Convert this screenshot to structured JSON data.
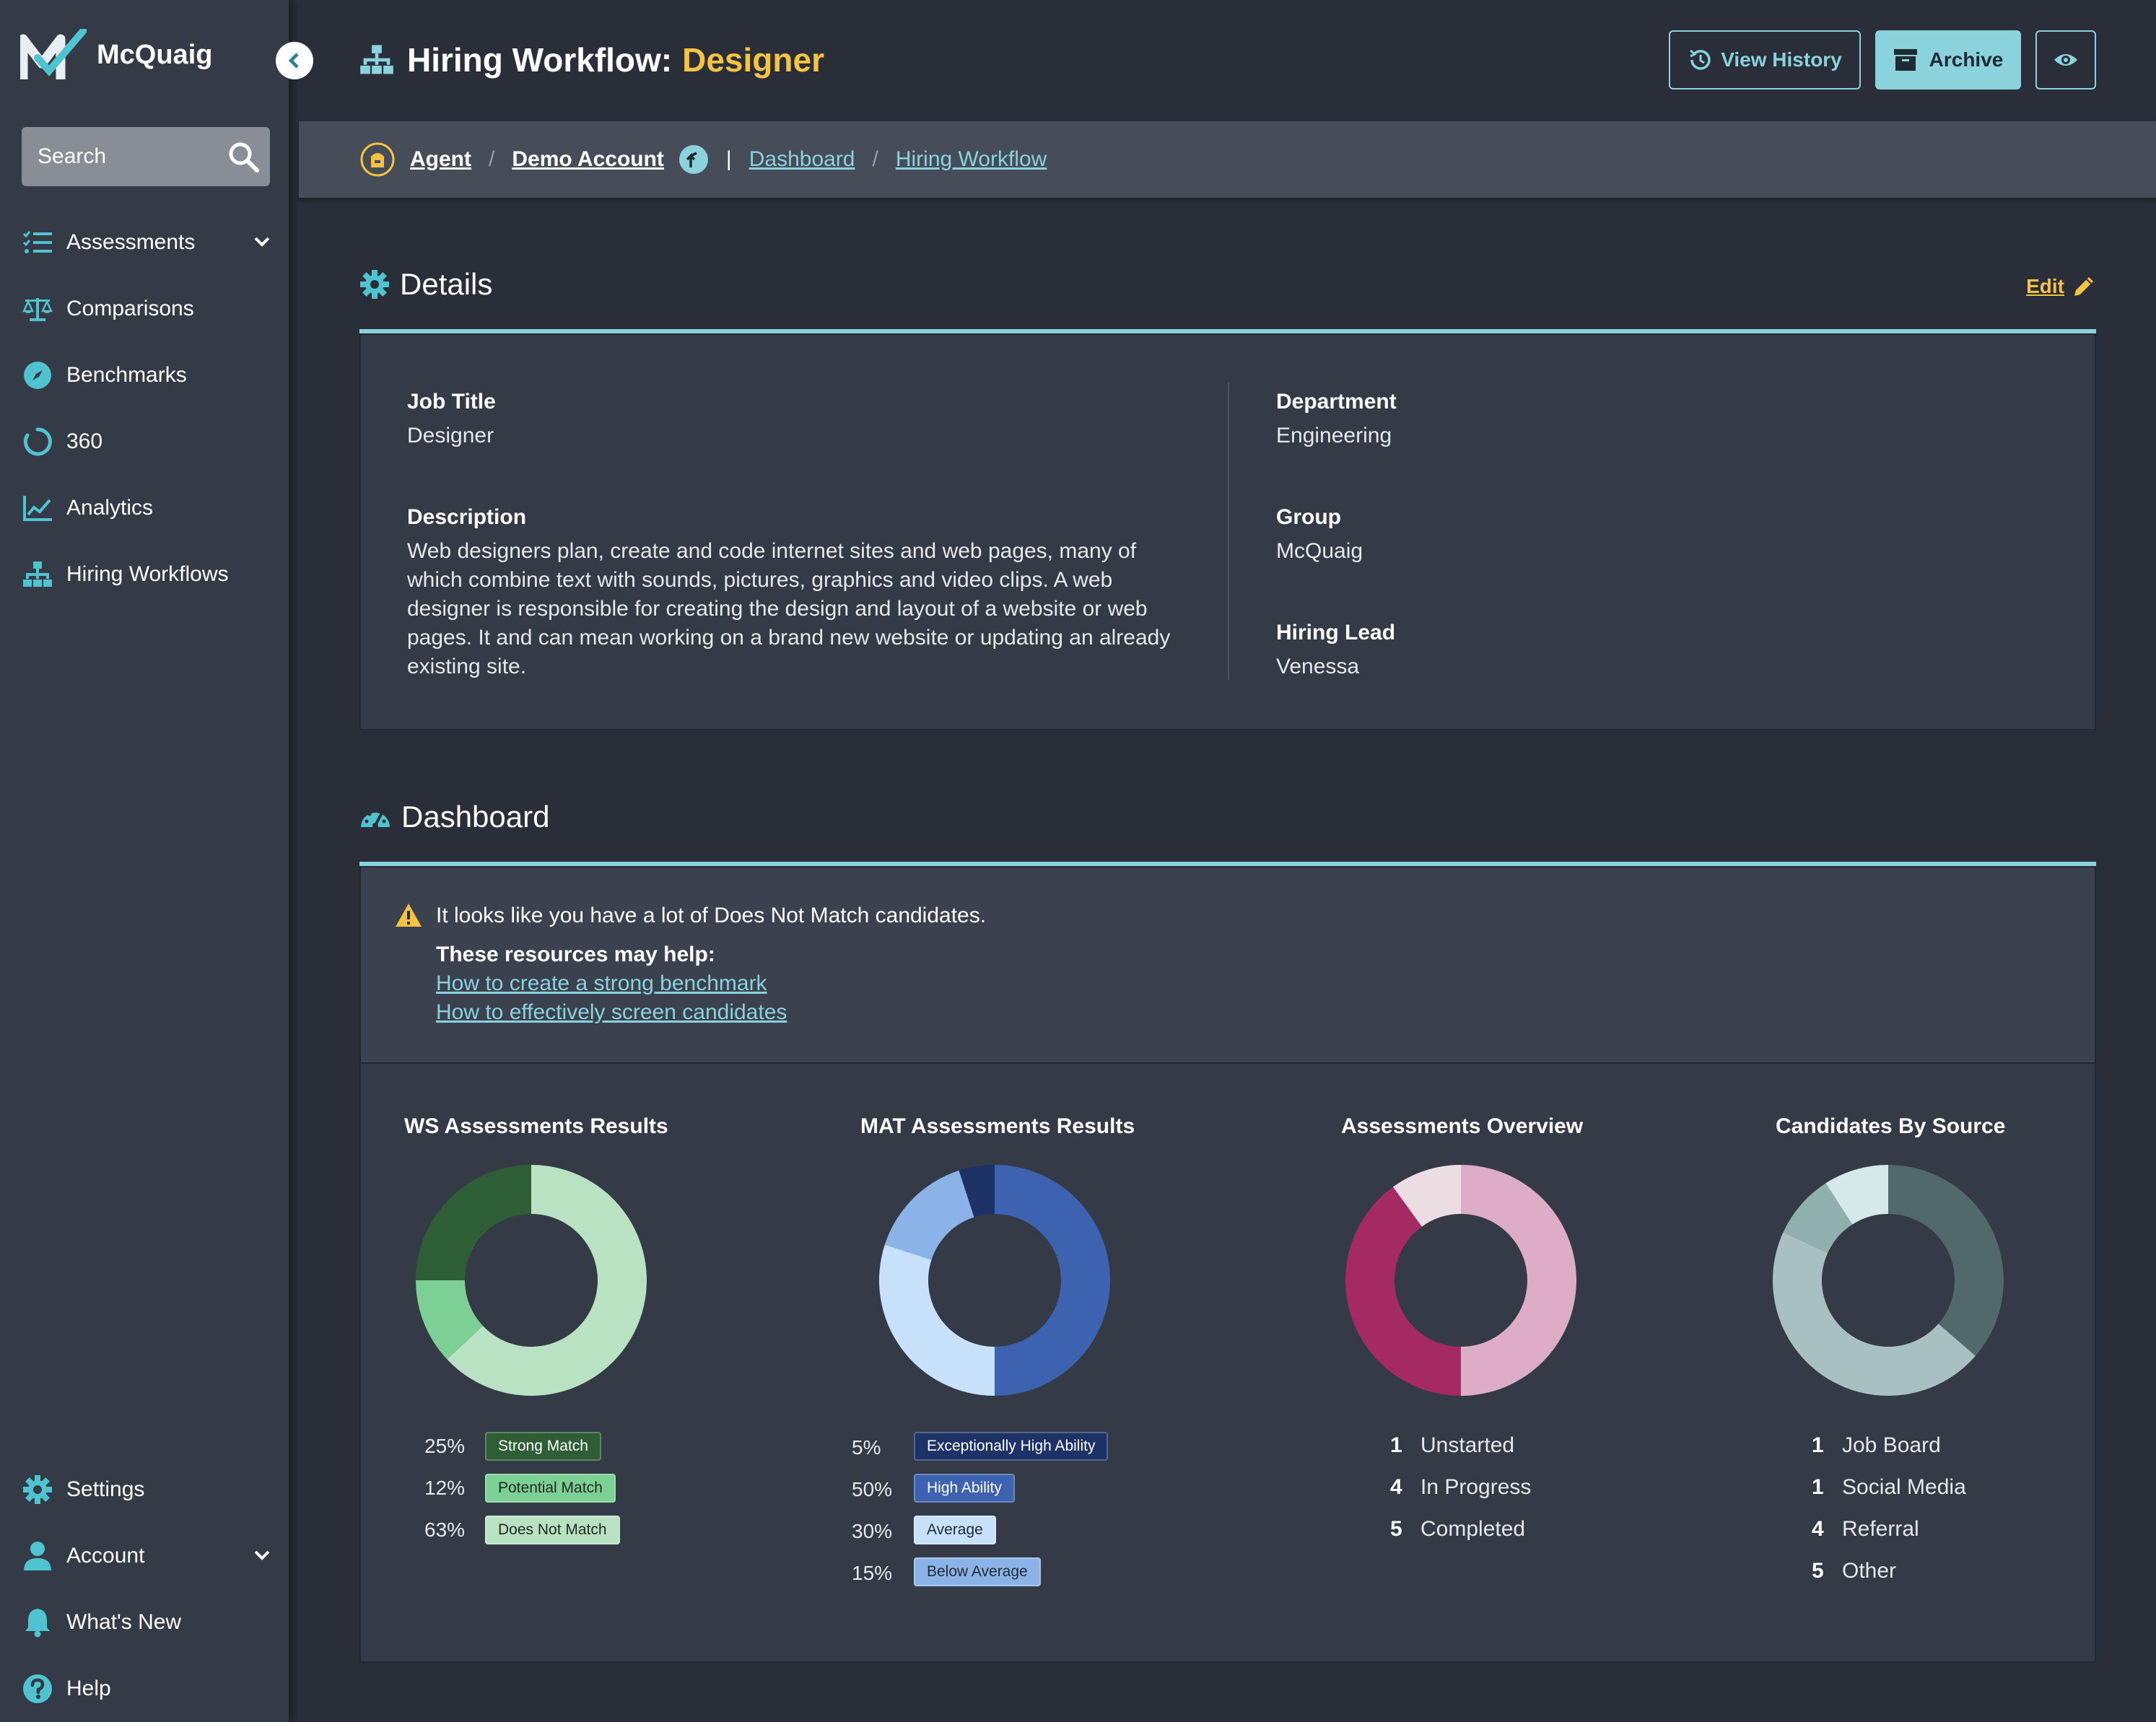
{
  "brand": {
    "name": "McQuaig"
  },
  "search": {
    "placeholder": "Search"
  },
  "sidebar": {
    "items": [
      {
        "label": "Assessments",
        "icon": "list-check-icon"
      },
      {
        "label": "Comparisons",
        "icon": "balance-scale-icon"
      },
      {
        "label": "Benchmarks",
        "icon": "compass-icon"
      },
      {
        "label": "360",
        "icon": "circle-notch-icon"
      },
      {
        "label": "Analytics",
        "icon": "chart-line-icon"
      },
      {
        "label": "Hiring Workflows",
        "icon": "sitemap-icon"
      }
    ],
    "bottom": [
      {
        "label": "Settings",
        "icon": "gear-icon"
      },
      {
        "label": "Account",
        "icon": "user-icon"
      },
      {
        "label": "What's New",
        "icon": "bell-icon"
      },
      {
        "label": "Help",
        "icon": "question-circle-icon"
      }
    ]
  },
  "header": {
    "title_prefix": "Hiring Workflow:",
    "title_accent": "Designer",
    "view_history": "View History",
    "archive": "Archive"
  },
  "breadcrumb": {
    "agent": "Agent",
    "sep": "/",
    "account": "Demo Account",
    "pipe": "|",
    "dashboard": "Dashboard",
    "workflow": "Hiring Workflow"
  },
  "details": {
    "heading": "Details",
    "edit": "Edit",
    "job_title_label": "Job Title",
    "job_title": "Designer",
    "description_label": "Description",
    "description": "Web designers plan, create and code internet sites and web pages, many of which combine text with sounds, pictures, graphics and video clips. A web designer is responsible for creating the design and layout of a website or web pages. It and can mean working on a brand new website or updating an already existing site.",
    "department_label": "Department",
    "department": "Engineering",
    "group_label": "Group",
    "group": "McQuaig",
    "hiring_lead_label": "Hiring Lead",
    "hiring_lead": "Venessa"
  },
  "dashboard": {
    "heading": "Dashboard",
    "alert": "It looks like you have a lot of Does Not Match candidates.",
    "resources_label": "These resources may help:",
    "link1": "How to create a strong benchmark",
    "link2": "How to effectively screen candidates"
  },
  "chart_data": [
    {
      "type": "pie",
      "title": "WS Assessments Results",
      "categories": [
        "Strong Match",
        "Potential Match",
        "Does Not Match"
      ],
      "values": [
        25,
        12,
        63
      ],
      "labels": [
        "25%",
        "12%",
        "63%"
      ],
      "colors": [
        "#2e5e36",
        "#7ccf95",
        "#b9e2c3"
      ],
      "pill_text": [
        "#ffffff",
        "#1f2a1f",
        "#1f2a1f"
      ]
    },
    {
      "type": "pie",
      "title": "MAT Assessments Results",
      "categories": [
        "Exceptionally High Ability",
        "High Ability",
        "Average",
        "Below Average"
      ],
      "values": [
        5,
        50,
        30,
        15
      ],
      "labels": [
        "5%",
        "50%",
        "30%",
        "15%"
      ],
      "colors": [
        "#1d3266",
        "#3c62b0",
        "#c7e1fb",
        "#8cb3e8"
      ],
      "pill_text": [
        "#ffffff",
        "#ffffff",
        "#1f2a33",
        "#1f2a33"
      ]
    },
    {
      "type": "pie",
      "title": "Assessments Overview",
      "categories": [
        "Unstarted",
        "In Progress",
        "Completed"
      ],
      "values": [
        1,
        4,
        5
      ],
      "colors": [
        "#ecdde3",
        "#a52a64",
        "#dcadc4"
      ]
    },
    {
      "type": "pie",
      "title": "Candidates By Source",
      "categories": [
        "Job Board",
        "Social Media",
        "Referral",
        "Other"
      ],
      "values": [
        1,
        1,
        4,
        5
      ],
      "colors": [
        "#d4e9e8",
        "#8fb0ad",
        "#51696a",
        "#a8c1c0"
      ]
    }
  ],
  "colors": {
    "accent": "#8ad3dc",
    "highlight": "#f5c242",
    "background": "#292e38",
    "sidebar": "#343a46"
  }
}
